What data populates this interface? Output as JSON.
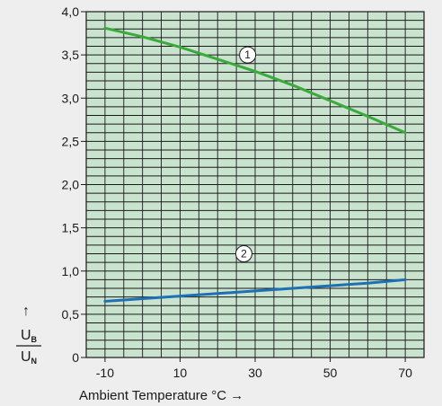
{
  "chart_data": {
    "type": "line",
    "title": "",
    "xlabel": "Ambient Temperature °C →",
    "ylabel": {
      "numerator": "U",
      "numerator_sub": "B",
      "denominator": "U",
      "denominator_sub": "N",
      "arrow": "↑"
    },
    "xlim": [
      -15,
      75
    ],
    "ylim": [
      0,
      4.0
    ],
    "x_ticks": [
      -10,
      10,
      30,
      50,
      70
    ],
    "x_tick_labels": [
      "-10",
      "10",
      "30",
      "50",
      "70"
    ],
    "y_ticks": [
      0,
      0.5,
      1.0,
      1.5,
      2.0,
      2.5,
      3.0,
      3.5,
      4.0
    ],
    "y_tick_labels": [
      "0",
      "0,5",
      "1,0",
      "1,5",
      "2,0",
      "2,5",
      "3,0",
      "3,5",
      "4,0"
    ],
    "grid": true,
    "series": [
      {
        "marker": "1",
        "color": "#3aaa3a",
        "x": [
          -10,
          0,
          10,
          20,
          30,
          40,
          50,
          60,
          70
        ],
        "y": [
          3.81,
          3.71,
          3.59,
          3.45,
          3.31,
          3.15,
          2.97,
          2.79,
          2.6
        ],
        "marker_pos": [
          28,
          3.5
        ]
      },
      {
        "marker": "2",
        "color": "#1f6fb5",
        "x": [
          -10,
          0,
          10,
          20,
          30,
          40,
          50,
          60,
          70
        ],
        "y": [
          0.65,
          0.68,
          0.71,
          0.74,
          0.77,
          0.8,
          0.83,
          0.86,
          0.9
        ],
        "marker_pos": [
          27,
          1.2
        ]
      }
    ]
  },
  "colors": {
    "background": "#eeeeee",
    "plot_background": "#c9e3cf",
    "grid": "#1a1a1a"
  }
}
